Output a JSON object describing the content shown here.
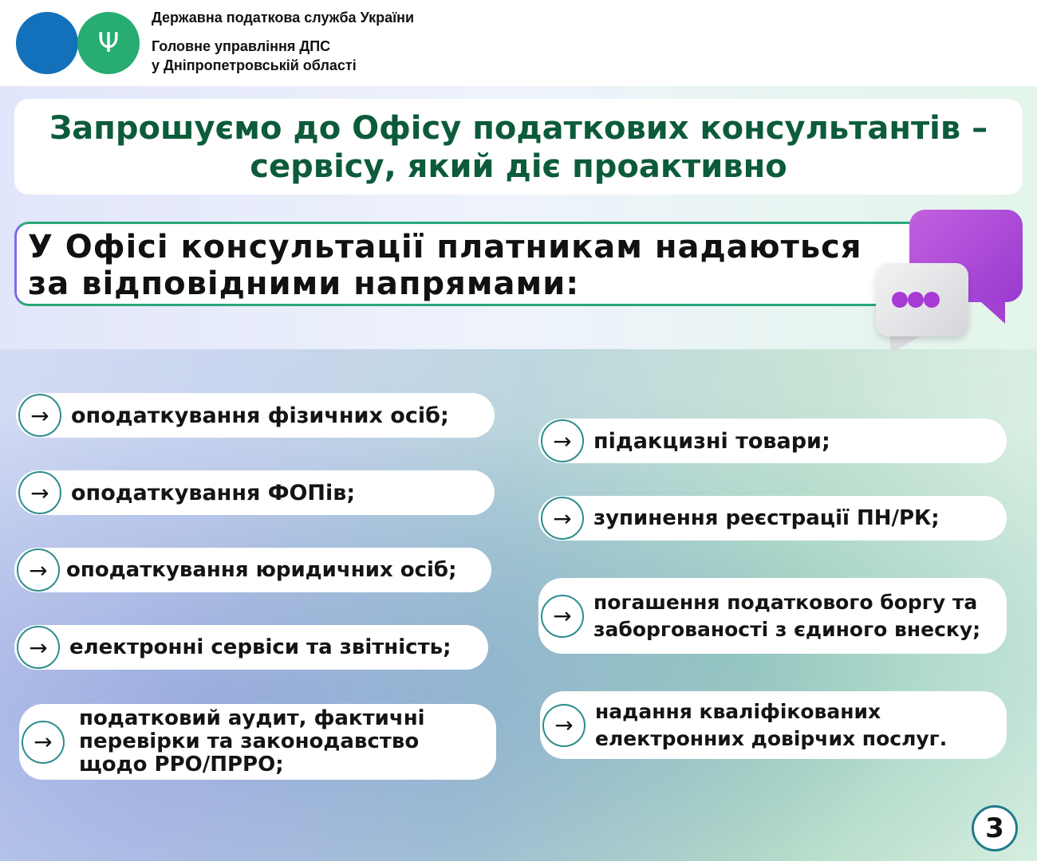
{
  "header": {
    "org": "Державна податкова служба України",
    "dept_line1": "Головне управління ДПС",
    "dept_line2": "у Дніпропетровській області",
    "emblem_icon": "trident-icon"
  },
  "title": {
    "line1": "Запрошуємо до Офісу податкових консультантів –",
    "line2": "сервісу, який діє проактивно"
  },
  "subtitle": {
    "line1": "У Офісі консультації платникам надаються",
    "line2": "за відповідними напрямами:"
  },
  "left_items": [
    {
      "label": "оподаткування фізичних осіб;"
    },
    {
      "label": "оподаткування ФОПів;"
    },
    {
      "label": "оподаткування юридичних осіб;"
    },
    {
      "label": "електронні сервіси та звітність;"
    },
    {
      "label": "податковий аудит, фактичні перевірки та законодавство щодо РРО/ПРРО;"
    }
  ],
  "right_items": [
    {
      "label": "підакцизні товари;"
    },
    {
      "label": "зупинення реєстрації ПН/РК;"
    },
    {
      "label": "погашення податкового боргу та заборгованості з єдиного внеску;"
    },
    {
      "label": "надання кваліфікованих електронних довірчих послуг."
    }
  ],
  "arrow_glyph": "→",
  "page_number": "3",
  "colors": {
    "title": "#0c5b3a",
    "blue": "#1371bb",
    "green": "#27ac72",
    "purple": "#a73ad5"
  }
}
